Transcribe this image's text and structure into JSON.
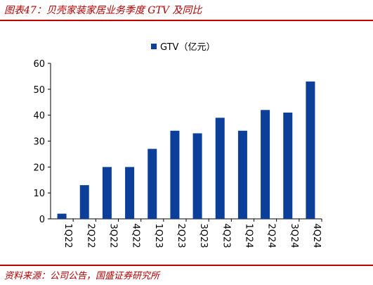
{
  "header": {
    "title": "图表47：贝壳家装家居业务季度 GTV 及同比"
  },
  "footer": {
    "source": "资料来源：公司公告，国盛证券研究所"
  },
  "colors": {
    "bar": "#0b3f9a",
    "accent": "#c00000"
  },
  "chart_data": {
    "type": "bar",
    "categories": [
      "1Q22",
      "2Q22",
      "3Q22",
      "4Q22",
      "1Q23",
      "2Q23",
      "3Q23",
      "4Q23",
      "1Q24",
      "2Q24",
      "3Q24",
      "4Q24"
    ],
    "series": [
      {
        "name": "GTV（亿元）",
        "values": [
          2,
          13,
          20,
          20,
          27,
          34,
          33,
          39,
          34,
          42,
          41,
          53
        ]
      }
    ],
    "ylim": [
      0,
      60
    ],
    "yticks": [
      0,
      10,
      20,
      30,
      40,
      50,
      60
    ],
    "grid": false,
    "legend": "top-center",
    "xlabel": "",
    "ylabel": ""
  }
}
